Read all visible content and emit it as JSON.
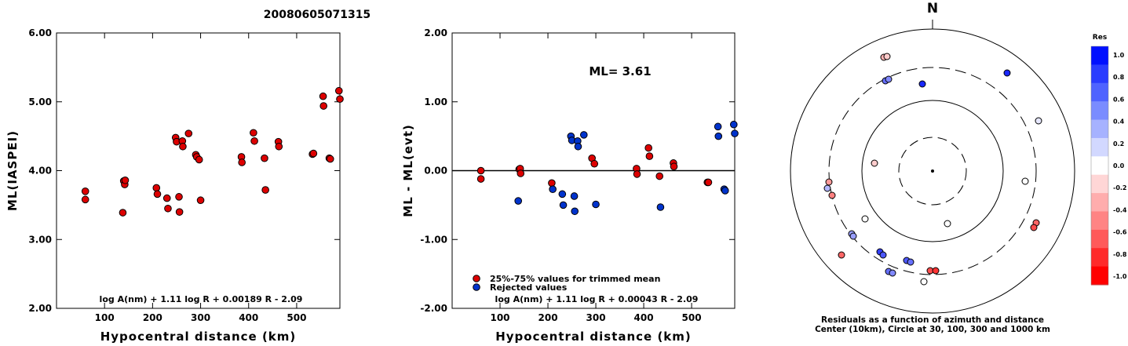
{
  "title": "20080605071315",
  "chart_data": [
    {
      "type": "scatter",
      "xlabel": "Hypocentral distance (km)",
      "ylabel": "ML(IASPEI)",
      "xlim": [
        0,
        590
      ],
      "ylim": [
        2.0,
        6.0
      ],
      "xticks": [
        "100",
        "200",
        "300",
        "400",
        "500"
      ],
      "xtick_values": [
        100,
        200,
        300,
        400,
        500
      ],
      "yticks": [
        "2.00",
        "3.00",
        "4.00",
        "5.00",
        "6.00"
      ],
      "ytick_values": [
        2,
        3,
        4,
        5,
        6
      ],
      "formula": "log A(nm) + 1.11 log R + 0.00189 R - 2.09",
      "marker_color": "#dd0000",
      "points": [
        [
          60,
          3.7
        ],
        [
          60,
          3.58
        ],
        [
          138,
          3.39
        ],
        [
          140,
          3.85
        ],
        [
          142,
          3.8
        ],
        [
          143,
          3.86
        ],
        [
          208,
          3.75
        ],
        [
          210,
          3.66
        ],
        [
          230,
          3.6
        ],
        [
          232,
          3.45
        ],
        [
          248,
          4.48
        ],
        [
          250,
          4.42
        ],
        [
          255,
          3.62
        ],
        [
          256,
          3.4
        ],
        [
          262,
          4.43
        ],
        [
          263,
          4.35
        ],
        [
          275,
          4.54
        ],
        [
          290,
          4.23
        ],
        [
          292,
          4.2
        ],
        [
          297,
          4.16
        ],
        [
          300,
          3.57
        ],
        [
          385,
          4.2
        ],
        [
          386,
          4.12
        ],
        [
          410,
          4.55
        ],
        [
          412,
          4.43
        ],
        [
          433,
          4.18
        ],
        [
          435,
          3.72
        ],
        [
          462,
          4.42
        ],
        [
          463,
          4.35
        ],
        [
          533,
          4.24
        ],
        [
          535,
          4.25
        ],
        [
          555,
          5.08
        ],
        [
          556,
          4.94
        ],
        [
          568,
          4.18
        ],
        [
          570,
          4.17
        ],
        [
          588,
          5.16
        ],
        [
          590,
          5.04
        ]
      ]
    },
    {
      "type": "scatter",
      "xlabel": "Hypocentral distance (km)",
      "ylabel": "ML - ML(evt)",
      "xlim": [
        0,
        590
      ],
      "ylim": [
        -2.0,
        2.0
      ],
      "xticks": [
        "100",
        "200",
        "300",
        "400",
        "500"
      ],
      "xtick_values": [
        100,
        200,
        300,
        400,
        500
      ],
      "yticks": [
        "-2.00",
        "-1.00",
        "0.00",
        "1.00",
        "2.00"
      ],
      "ytick_values": [
        -2,
        -1,
        0,
        1,
        2
      ],
      "annotation": "ML= 3.61",
      "legend": [
        {
          "label": "25%-75% values for trimmed mean",
          "color": "#dd0000"
        },
        {
          "label": "Rejected values",
          "color": "#0033cc"
        }
      ],
      "formula": "log A(nm) + 1.11 log R + 0.00043 R - 2.09",
      "series": [
        {
          "name": "25%-75% values for trimmed mean",
          "color": "#dd0000",
          "points": [
            [
              60,
              0.0
            ],
            [
              60,
              -0.12
            ],
            [
              140,
              0.02
            ],
            [
              142,
              0.03
            ],
            [
              143,
              -0.04
            ],
            [
              208,
              -0.18
            ],
            [
              292,
              0.18
            ],
            [
              297,
              0.1
            ],
            [
              385,
              0.03
            ],
            [
              386,
              -0.05
            ],
            [
              410,
              0.33
            ],
            [
              412,
              0.21
            ],
            [
              433,
              -0.08
            ],
            [
              462,
              0.11
            ],
            [
              463,
              0.06
            ],
            [
              533,
              -0.17
            ],
            [
              535,
              -0.17
            ]
          ]
        },
        {
          "name": "Rejected values",
          "color": "#0033cc",
          "points": [
            [
              138,
              -0.44
            ],
            [
              210,
              -0.27
            ],
            [
              230,
              -0.34
            ],
            [
              232,
              -0.5
            ],
            [
              248,
              0.5
            ],
            [
              250,
              0.44
            ],
            [
              255,
              -0.37
            ],
            [
              256,
              -0.59
            ],
            [
              262,
              0.43
            ],
            [
              263,
              0.35
            ],
            [
              275,
              0.52
            ],
            [
              300,
              -0.49
            ],
            [
              435,
              -0.53
            ],
            [
              555,
              0.64
            ],
            [
              556,
              0.5
            ],
            [
              568,
              -0.27
            ],
            [
              570,
              -0.29
            ],
            [
              588,
              0.67
            ],
            [
              590,
              0.54
            ]
          ]
        }
      ]
    },
    {
      "type": "scatter",
      "north_label": "N",
      "caption_line1": "Residuals as a function of azimuth and distance",
      "caption_line2": "Center (10km), Circle at 30, 100, 300 and 1000 km",
      "colorbar_title": "Res",
      "colorbar_ticks": [
        "1.0",
        "0.8",
        "0.6",
        "0.4",
        "0.2",
        "0.0",
        "-0.2",
        "-0.4",
        "-0.6",
        "-0.8",
        "-1.0"
      ],
      "colorbar_tick_values": [
        1.0,
        0.8,
        0.6,
        0.4,
        0.2,
        0.0,
        -0.2,
        -0.4,
        -0.6,
        -0.8,
        -1.0
      ],
      "colorbar_colors": [
        "#0010ff",
        "#2a3cff",
        "#4f63ff",
        "#7a8cff",
        "#a6b2ff",
        "#d2d8ff",
        "#ffffff",
        "#ffd6d6",
        "#ffadad",
        "#ff8484",
        "#ff5a5a",
        "#ff2a2a",
        "#ff0000"
      ],
      "stations": [
        {
          "dx": -62,
          "dy": -145,
          "res": -0.3
        },
        {
          "dx": -58,
          "dy": -146,
          "res": -0.2
        },
        {
          "dx": -60,
          "dy": -115,
          "res": 0.6
        },
        {
          "dx": -56,
          "dy": -117,
          "res": 0.5
        },
        {
          "dx": -13,
          "dy": -111,
          "res": 0.9
        },
        {
          "dx": 95,
          "dy": -125,
          "res": 0.9
        },
        {
          "dx": 135,
          "dy": -64,
          "res": 0.1
        },
        {
          "dx": -74,
          "dy": -10,
          "res": -0.2
        },
        {
          "dx": -132,
          "dy": 14,
          "res": -0.4
        },
        {
          "dx": -134,
          "dy": 22,
          "res": 0.3
        },
        {
          "dx": -128,
          "dy": 31,
          "res": -0.5
        },
        {
          "dx": -86,
          "dy": 61,
          "res": 0.0
        },
        {
          "dx": 118,
          "dy": 13,
          "res": 0.0
        },
        {
          "dx": 19,
          "dy": 67,
          "res": 0.0
        },
        {
          "dx": -103,
          "dy": 80,
          "res": 0.4
        },
        {
          "dx": -101,
          "dy": 83,
          "res": 0.4
        },
        {
          "dx": 132,
          "dy": 66,
          "res": -0.6
        },
        {
          "dx": 129,
          "dy": 72,
          "res": -0.7
        },
        {
          "dx": -116,
          "dy": 107,
          "res": -0.6
        },
        {
          "dx": -67,
          "dy": 103,
          "res": 0.8
        },
        {
          "dx": -63,
          "dy": 107,
          "res": 0.7
        },
        {
          "dx": -56,
          "dy": 128,
          "res": 0.6
        },
        {
          "dx": -51,
          "dy": 130,
          "res": 0.5
        },
        {
          "dx": -33,
          "dy": 114,
          "res": 0.7
        },
        {
          "dx": -28,
          "dy": 116,
          "res": 0.6
        },
        {
          "dx": -3,
          "dy": 127,
          "res": -0.7
        },
        {
          "dx": 4,
          "dy": 127,
          "res": -0.8
        },
        {
          "dx": -11,
          "dy": 141,
          "res": 0.0
        }
      ]
    }
  ]
}
